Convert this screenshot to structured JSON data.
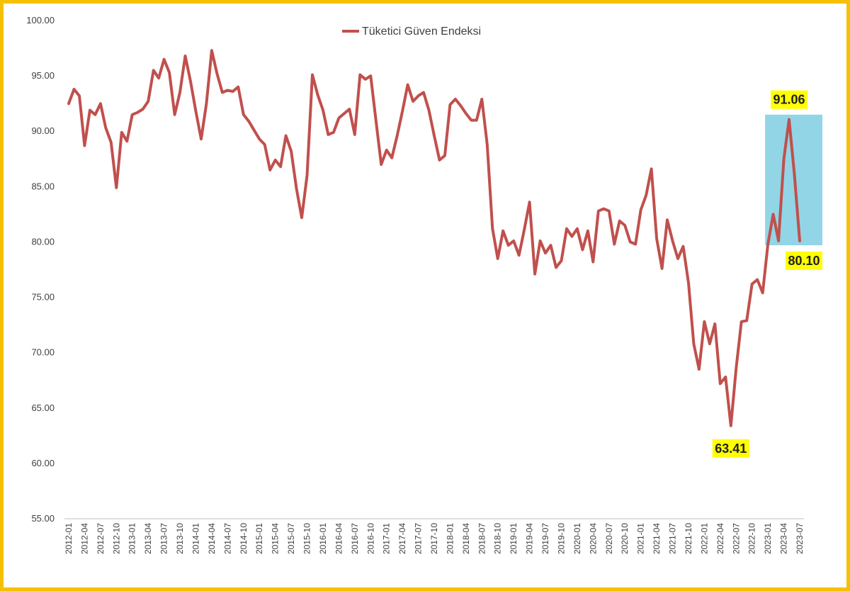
{
  "chart_data": {
    "type": "line",
    "title": "",
    "xlabel": "",
    "ylabel": "",
    "ylim": [
      55,
      100
    ],
    "yticks": [
      "55.00",
      "60.00",
      "65.00",
      "70.00",
      "75.00",
      "80.00",
      "85.00",
      "90.00",
      "95.00",
      "100.00"
    ],
    "grid": false,
    "legend_position": "top-center",
    "x_tick_labels": [
      "2012-01",
      "2012-04",
      "2012-07",
      "2012-10",
      "2013-01",
      "2013-04",
      "2013-07",
      "2013-10",
      "2014-01",
      "2014-04",
      "2014-07",
      "2014-10",
      "2015-01",
      "2015-04",
      "2015-07",
      "2015-10",
      "2016-01",
      "2016-04",
      "2016-07",
      "2016-10",
      "2017-01",
      "2017-04",
      "2017-07",
      "2017-10",
      "2018-01",
      "2018-04",
      "2018-07",
      "2018-10",
      "2019-01",
      "2019-04",
      "2019-07",
      "2019-10",
      "2020-01",
      "2020-04",
      "2020-07",
      "2020-10",
      "2021-01",
      "2021-04",
      "2021-07",
      "2021-10",
      "2022-01",
      "2022-04",
      "2022-07",
      "2022-10",
      "2023-01",
      "2023-04",
      "2023-07"
    ],
    "series": [
      {
        "name": "Tüketici Güven Endeksi",
        "color": "#c0504d",
        "start_month": "2012-01",
        "values": [
          92.5,
          93.8,
          93.2,
          88.7,
          91.9,
          91.5,
          92.5,
          90.3,
          89.0,
          84.9,
          89.9,
          89.1,
          91.5,
          91.7,
          92.0,
          92.7,
          95.5,
          94.8,
          96.5,
          95.3,
          91.5,
          93.5,
          96.8,
          94.5,
          91.8,
          89.3,
          92.5,
          97.3,
          95.2,
          93.5,
          93.7,
          93.6,
          94.0,
          91.5,
          90.9,
          90.1,
          89.3,
          88.8,
          86.5,
          87.4,
          86.8,
          89.6,
          88.2,
          84.8,
          82.2,
          86.0,
          95.1,
          93.3,
          91.9,
          89.7,
          89.9,
          91.2,
          91.6,
          92.0,
          89.7,
          95.1,
          94.7,
          95.0,
          91.0,
          87.0,
          88.3,
          87.6,
          89.6,
          91.8,
          94.2,
          92.7,
          93.2,
          93.5,
          91.9,
          89.6,
          87.4,
          87.8,
          92.4,
          92.9,
          92.3,
          91.6,
          91.0,
          91.0,
          92.9,
          88.8,
          81.2,
          78.5,
          81.0,
          79.7,
          80.1,
          78.8,
          81.1,
          83.6,
          77.1,
          80.1,
          79.0,
          79.7,
          77.7,
          78.3,
          81.2,
          80.5,
          81.2,
          79.3,
          81.0,
          78.2,
          82.8,
          83.0,
          82.8,
          79.8,
          81.9,
          81.5,
          80.0,
          79.8,
          82.9,
          84.2,
          86.6,
          80.3,
          77.6,
          82.0,
          80.1,
          78.5,
          79.6,
          76.3,
          70.8,
          68.5,
          72.8,
          70.8,
          72.6,
          67.2,
          67.8,
          63.4,
          68.6,
          72.8,
          72.9,
          76.2,
          76.6,
          75.4,
          79.8,
          82.5,
          80.1,
          87.5,
          91.06,
          86.1,
          80.1
        ]
      }
    ],
    "callouts": [
      {
        "label": "91.06",
        "month": "2023-05"
      },
      {
        "label": "80.10",
        "month": "2023-07"
      },
      {
        "label": "63.41",
        "month": "2022-06"
      }
    ],
    "highlight": {
      "from_month": "2023-01",
      "to_month": "2023-07",
      "ymin": 79.7,
      "ymax": 91.5,
      "color": "#92d5e6"
    },
    "callout_color": "#ffff00"
  }
}
